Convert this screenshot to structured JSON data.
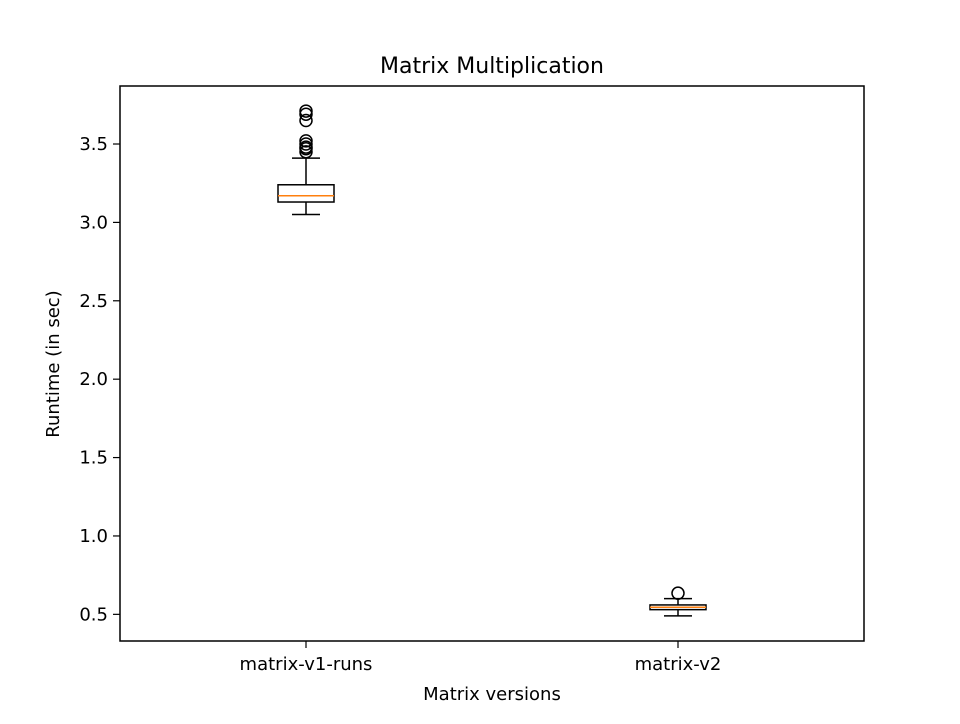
{
  "chart_data": {
    "type": "box",
    "title": "Matrix Multiplication",
    "xlabel": "Matrix versions",
    "ylabel": "Runtime (in sec)",
    "ylim": [
      0.33,
      3.87
    ],
    "yticks": [
      0.5,
      1.0,
      1.5,
      2.0,
      2.5,
      3.0,
      3.5
    ],
    "ytick_labels": [
      "0.5",
      "1.0",
      "1.5",
      "2.0",
      "2.5",
      "3.0",
      "3.5"
    ],
    "grid": false,
    "categories": [
      "matrix-v1-runs",
      "matrix-v2"
    ],
    "boxes": [
      {
        "name": "matrix-v1-runs",
        "whisker_low": 3.05,
        "q1": 3.13,
        "median": 3.17,
        "q3": 3.24,
        "whisker_high": 3.41,
        "outliers": [
          3.45,
          3.47,
          3.48,
          3.5,
          3.52,
          3.65,
          3.69,
          3.71
        ]
      },
      {
        "name": "matrix-v2",
        "whisker_low": 0.49,
        "q1": 0.53,
        "median": 0.545,
        "q3": 0.56,
        "whisker_high": 0.6,
        "outliers": [
          0.635
        ]
      }
    ],
    "colors": {
      "box": "#000000",
      "median": "#ff7f0e",
      "outlier_edge": "#000000"
    }
  }
}
